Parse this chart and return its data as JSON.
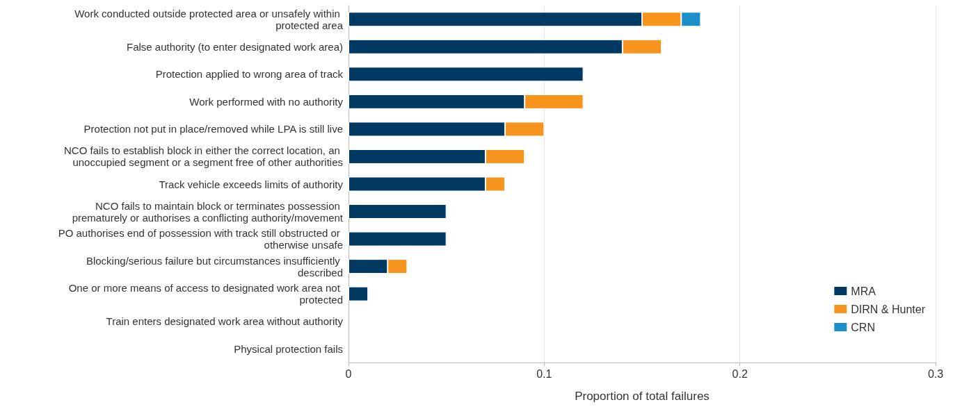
{
  "chart_data": {
    "type": "bar",
    "orientation": "horizontal",
    "stacked": true,
    "xlabel": "Proportion of total failures",
    "categories": [
      "Work conducted outside protected area or unsafely within protected area",
      "False authority (to enter designated work area)",
      "Protection applied to wrong area of track",
      "Work performed with no authority",
      "Protection not put in place/removed while LPA is still live",
      "NCO fails to establish block in either the correct location, an unoccupied segment or a segment free of other authorities",
      "Track vehicle exceeds limits of authority",
      "NCO fails to maintain block or terminates possession prematurely or authorises a conflicting authority/movement",
      "PO authorises end of possession with track still obstructed or otherwise unsafe",
      "Blocking/serious failure but circumstances insufficiently described",
      "One or more means of access to designated work area not protected",
      "Train enters designated work area without authority",
      "Physical protection fails"
    ],
    "series": [
      {
        "name": "MRA",
        "color": "#003a63",
        "values": [
          0.15,
          0.14,
          0.12,
          0.09,
          0.08,
          0.07,
          0.07,
          0.05,
          0.05,
          0.02,
          0.01,
          0,
          0
        ]
      },
      {
        "name": "DIRN & Hunter",
        "color": "#f7941d",
        "values": [
          0.02,
          0.02,
          0,
          0.03,
          0.02,
          0.02,
          0.01,
          0,
          0,
          0.01,
          0,
          0,
          0
        ]
      },
      {
        "name": "CRN",
        "color": "#1a8fc9",
        "values": [
          0.01,
          0,
          0,
          0,
          0,
          0,
          0,
          0,
          0,
          0,
          0,
          0,
          0
        ]
      }
    ],
    "xlim": [
      0,
      0.3
    ],
    "xticks": [
      0,
      0.1,
      0.2,
      0.3
    ],
    "grid": "x",
    "legend": "bottom right"
  }
}
